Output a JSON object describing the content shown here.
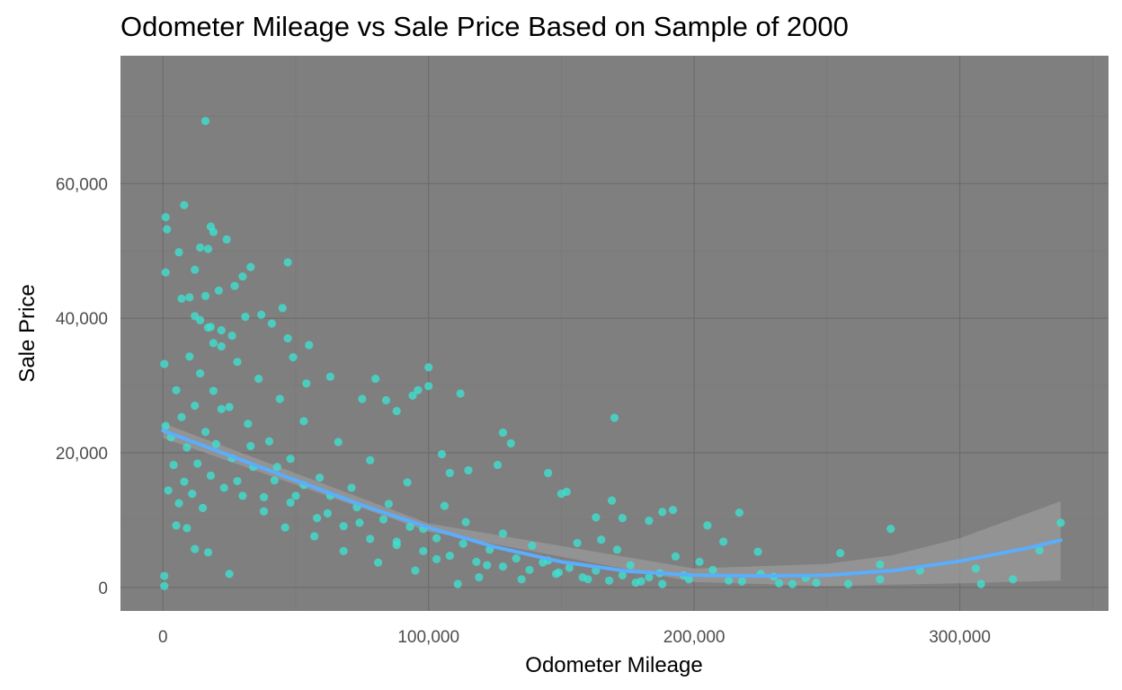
{
  "chart_data": {
    "type": "scatter",
    "title": "Odometer Mileage vs Sale Price Based on Sample of 2000",
    "xlabel": "Odometer Mileage",
    "ylabel": "Sale Price",
    "xlim": [
      -16000,
      356000
    ],
    "ylim": [
      -3500,
      79000
    ],
    "x_ticks": [
      0,
      100000,
      200000,
      300000
    ],
    "x_tick_labels": [
      "0",
      "100,000",
      "200,000",
      "300,000"
    ],
    "y_ticks": [
      0,
      20000,
      40000,
      60000
    ],
    "y_tick_labels": [
      "0",
      "20,000",
      "40,000",
      "60,000"
    ],
    "grid": true,
    "legend": "none",
    "sample_size": 2000,
    "colors": {
      "panel": "#7f7f7f",
      "grid_major": "#6b6b6b",
      "grid_minor": "#767676",
      "points": "#40e0d0",
      "trend": "#5aaefc",
      "ribbon": "#9a9a9a"
    },
    "series": [
      {
        "kind": "points",
        "points": [
          [
            1000,
            55000
          ],
          [
            1500,
            53200
          ],
          [
            1000,
            46800
          ],
          [
            16000,
            69300
          ],
          [
            8000,
            56800
          ],
          [
            6000,
            49800
          ],
          [
            12000,
            47200
          ],
          [
            14000,
            50500
          ],
          [
            18000,
            53600
          ],
          [
            19000,
            52800
          ],
          [
            24000,
            51700
          ],
          [
            17000,
            50300
          ],
          [
            47000,
            48300
          ],
          [
            33000,
            47600
          ],
          [
            30000,
            46200
          ],
          [
            27000,
            44800
          ],
          [
            21000,
            44100
          ],
          [
            16000,
            43300
          ],
          [
            10000,
            43100
          ],
          [
            7000,
            42900
          ],
          [
            12000,
            40300
          ],
          [
            14000,
            39700
          ],
          [
            18000,
            38700
          ],
          [
            22000,
            38200
          ],
          [
            26000,
            37400
          ],
          [
            19000,
            36300
          ],
          [
            31000,
            40200
          ],
          [
            37000,
            40500
          ],
          [
            41000,
            39200
          ],
          [
            45000,
            41500
          ],
          [
            47000,
            37000
          ],
          [
            55000,
            36000
          ],
          [
            49000,
            34200
          ],
          [
            54000,
            30300
          ],
          [
            63000,
            31300
          ],
          [
            80000,
            31000
          ],
          [
            100000,
            32700
          ],
          [
            100000,
            29900
          ],
          [
            96000,
            29300
          ],
          [
            94000,
            28500
          ],
          [
            112000,
            28800
          ],
          [
            170000,
            25200
          ],
          [
            75000,
            28000
          ],
          [
            84000,
            27800
          ],
          [
            88000,
            26200
          ],
          [
            105000,
            19800
          ],
          [
            108000,
            17000
          ],
          [
            115000,
            17400
          ],
          [
            126000,
            18200
          ],
          [
            131000,
            21400
          ],
          [
            128000,
            23000
          ],
          [
            145000,
            17000
          ],
          [
            152000,
            14200
          ],
          [
            150000,
            13900
          ],
          [
            169000,
            12900
          ],
          [
            163000,
            10400
          ],
          [
            173000,
            10300
          ],
          [
            188000,
            11200
          ],
          [
            192000,
            11500
          ],
          [
            183000,
            9900
          ],
          [
            205000,
            9200
          ],
          [
            217000,
            11100
          ],
          [
            211000,
            6800
          ],
          [
            224000,
            5300
          ],
          [
            255000,
            5100
          ],
          [
            274000,
            8700
          ],
          [
            270000,
            3400
          ],
          [
            270000,
            1200
          ],
          [
            306000,
            2800
          ],
          [
            308000,
            500
          ],
          [
            320000,
            1200
          ],
          [
            330000,
            5500
          ],
          [
            338000,
            9600
          ],
          [
            285000,
            2500
          ],
          [
            246000,
            700
          ],
          [
            242000,
            1400
          ],
          [
            237000,
            500
          ],
          [
            230000,
            1600
          ],
          [
            225000,
            2000
          ],
          [
            213000,
            1000
          ],
          [
            207000,
            2600
          ],
          [
            202000,
            3800
          ],
          [
            196000,
            1800
          ],
          [
            193000,
            4600
          ],
          [
            187000,
            2100
          ],
          [
            180000,
            900
          ],
          [
            176000,
            3300
          ],
          [
            171000,
            5600
          ],
          [
            165000,
            7100
          ],
          [
            160000,
            1200
          ],
          [
            156000,
            6600
          ],
          [
            149000,
            2200
          ],
          [
            145000,
            4000
          ],
          [
            139000,
            6200
          ],
          [
            135000,
            1200
          ],
          [
            128000,
            8000
          ],
          [
            122000,
            3300
          ],
          [
            119000,
            1500
          ],
          [
            114000,
            9700
          ],
          [
            111000,
            500
          ],
          [
            106000,
            12100
          ],
          [
            103000,
            4200
          ],
          [
            98000,
            8700
          ],
          [
            95000,
            2500
          ],
          [
            92000,
            15600
          ],
          [
            88000,
            6300
          ],
          [
            85000,
            12400
          ],
          [
            81000,
            3700
          ],
          [
            78000,
            18900
          ],
          [
            74000,
            9600
          ],
          [
            71000,
            14800
          ],
          [
            68000,
            5400
          ],
          [
            66000,
            21600
          ],
          [
            62000,
            11000
          ],
          [
            59000,
            16300
          ],
          [
            57000,
            7600
          ],
          [
            53000,
            24700
          ],
          [
            50000,
            13600
          ],
          [
            48000,
            19100
          ],
          [
            46000,
            8900
          ],
          [
            44000,
            28000
          ],
          [
            42000,
            15900
          ],
          [
            40000,
            21700
          ],
          [
            38000,
            11300
          ],
          [
            36000,
            31000
          ],
          [
            34000,
            17900
          ],
          [
            32000,
            24300
          ],
          [
            30000,
            13600
          ],
          [
            28000,
            33500
          ],
          [
            26000,
            19200
          ],
          [
            25000,
            26800
          ],
          [
            23000,
            14800
          ],
          [
            22000,
            35800
          ],
          [
            20000,
            21300
          ],
          [
            19000,
            29200
          ],
          [
            18000,
            16600
          ],
          [
            17000,
            38600
          ],
          [
            16000,
            23100
          ],
          [
            15000,
            11800
          ],
          [
            14000,
            31800
          ],
          [
            13000,
            18400
          ],
          [
            12000,
            27000
          ],
          [
            11000,
            13900
          ],
          [
            10000,
            34300
          ],
          [
            9000,
            20800
          ],
          [
            8000,
            15700
          ],
          [
            7000,
            25300
          ],
          [
            6000,
            12500
          ],
          [
            5000,
            29300
          ],
          [
            4000,
            18200
          ],
          [
            3000,
            22300
          ],
          [
            2000,
            14400
          ],
          [
            1000,
            24000
          ],
          [
            500,
            33200
          ],
          [
            500,
            1700
          ],
          [
            500,
            200
          ],
          [
            5000,
            9200
          ],
          [
            9000,
            8800
          ],
          [
            12000,
            5700
          ],
          [
            17000,
            5200
          ],
          [
            25000,
            2000
          ],
          [
            22000,
            26500
          ],
          [
            28000,
            15800
          ],
          [
            33000,
            21000
          ],
          [
            38000,
            13400
          ],
          [
            43000,
            17900
          ],
          [
            48000,
            12600
          ],
          [
            53000,
            15200
          ],
          [
            58000,
            10300
          ],
          [
            63000,
            13600
          ],
          [
            68000,
            9100
          ],
          [
            73000,
            11900
          ],
          [
            78000,
            7200
          ],
          [
            83000,
            10100
          ],
          [
            88000,
            6800
          ],
          [
            93000,
            9000
          ],
          [
            98000,
            5400
          ],
          [
            103000,
            7300
          ],
          [
            108000,
            4700
          ],
          [
            113000,
            6500
          ],
          [
            118000,
            3800
          ],
          [
            123000,
            5600
          ],
          [
            128000,
            3100
          ],
          [
            133000,
            4300
          ],
          [
            138000,
            2600
          ],
          [
            143000,
            3700
          ],
          [
            148000,
            2000
          ],
          [
            153000,
            2900
          ],
          [
            158000,
            1500
          ],
          [
            163000,
            2500
          ],
          [
            168000,
            1000
          ],
          [
            173000,
            1800
          ],
          [
            178000,
            700
          ],
          [
            183000,
            1500
          ],
          [
            188000,
            500
          ],
          [
            198000,
            1200
          ],
          [
            218000,
            900
          ],
          [
            232000,
            600
          ],
          [
            258000,
            500
          ]
        ]
      },
      {
        "kind": "trend",
        "points": [
          [
            0,
            23300
          ],
          [
            25000,
            19600
          ],
          [
            50000,
            15900
          ],
          [
            75000,
            12200
          ],
          [
            100000,
            8900
          ],
          [
            125000,
            6000
          ],
          [
            150000,
            3800
          ],
          [
            175000,
            2400
          ],
          [
            200000,
            1800
          ],
          [
            225000,
            1700
          ],
          [
            250000,
            1800
          ],
          [
            275000,
            2500
          ],
          [
            300000,
            3900
          ],
          [
            325000,
            5800
          ],
          [
            338000,
            7000
          ]
        ],
        "ribbon_low": [
          [
            0,
            22200
          ],
          [
            100000,
            8300
          ],
          [
            200000,
            800
          ],
          [
            250000,
            200
          ],
          [
            275000,
            400
          ],
          [
            300000,
            600
          ],
          [
            338000,
            1000
          ]
        ],
        "ribbon_high": [
          [
            0,
            24400
          ],
          [
            100000,
            9500
          ],
          [
            200000,
            2800
          ],
          [
            250000,
            3500
          ],
          [
            275000,
            4800
          ],
          [
            300000,
            7300
          ],
          [
            338000,
            12800
          ]
        ]
      }
    ]
  }
}
